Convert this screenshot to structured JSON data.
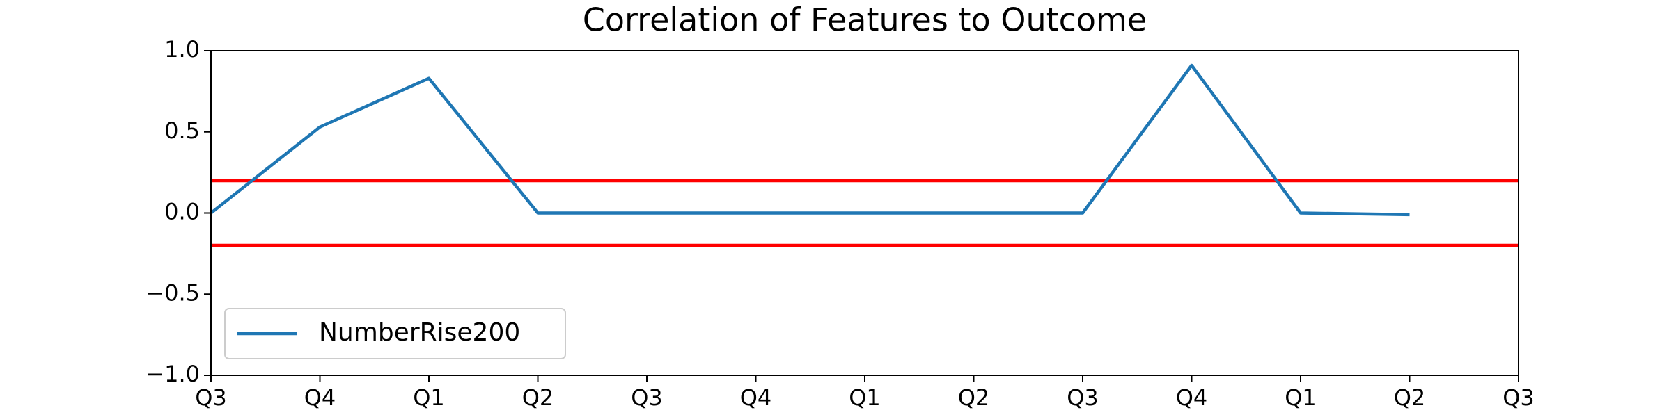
{
  "chart_data": {
    "type": "line",
    "title": "Correlation of Features to Outcome",
    "categories": [
      "Q3",
      "Q4",
      "Q1",
      "Q2",
      "Q3",
      "Q4",
      "Q1",
      "Q2",
      "Q3",
      "Q4",
      "Q1",
      "Q2",
      "Q3"
    ],
    "series": [
      {
        "name": "NumberRise200",
        "color": "#1f77b4",
        "values": [
          0.0,
          0.53,
          0.83,
          0.0,
          0.0,
          0.0,
          0.0,
          0.0,
          0.0,
          0.91,
          0.0,
          -0.01,
          null
        ]
      }
    ],
    "hlines": [
      0.2,
      -0.2
    ],
    "hline_color": "#ff0000",
    "ylim": [
      -1.0,
      1.0
    ],
    "yticks": [
      {
        "value": -1.0,
        "label": "−1.0"
      },
      {
        "value": -0.5,
        "label": "−0.5"
      },
      {
        "value": 0.0,
        "label": "0.0"
      },
      {
        "value": 0.5,
        "label": "0.5"
      },
      {
        "value": 1.0,
        "label": "1.0"
      }
    ],
    "legend": "lower left",
    "grid": false
  }
}
